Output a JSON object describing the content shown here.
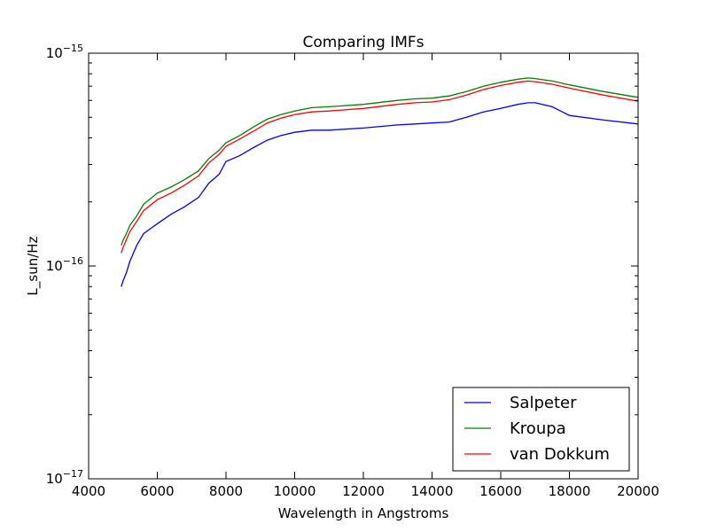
{
  "chart_data": {
    "type": "line",
    "title": "Comparing IMFs",
    "xlabel": "Wavelength in Angstroms",
    "ylabel": "L_sun/Hz",
    "xlim": [
      4000,
      20000
    ],
    "ylim": [
      1e-17,
      1e-15
    ],
    "yscale": "log",
    "x_ticks": [
      4000,
      6000,
      8000,
      10000,
      12000,
      14000,
      16000,
      18000,
      20000
    ],
    "x_tick_labels": [
      "4000",
      "6000",
      "8000",
      "10000",
      "12000",
      "14000",
      "16000",
      "18000",
      "20000"
    ],
    "y_ticks": [
      {
        "value": 1e-17,
        "base": "10",
        "exp": "−17"
      },
      {
        "value": 1e-16,
        "base": "10",
        "exp": "−16"
      },
      {
        "value": 1e-15,
        "base": "10",
        "exp": "−15"
      }
    ],
    "grid": false,
    "legend_position": "lower-right",
    "series": [
      {
        "name": "Salpeter",
        "color": "#0000ff",
        "x": [
          4950,
          5000,
          5100,
          5200,
          5400,
          5600,
          6000,
          6400,
          6800,
          7200,
          7500,
          7800,
          8000,
          8400,
          8800,
          9200,
          9600,
          10000,
          10500,
          11000,
          12000,
          13000,
          13500,
          14000,
          14500,
          15000,
          15500,
          16000,
          16500,
          16800,
          17000,
          17500,
          18000,
          19000,
          20000
        ],
        "y": [
          8e-17,
          8.5e-17,
          9.3e-17,
          1.05e-16,
          1.25e-16,
          1.42e-16,
          1.58e-16,
          1.75e-16,
          1.9e-16,
          2.1e-16,
          2.45e-16,
          2.7e-16,
          3.1e-16,
          3.3e-16,
          3.6e-16,
          3.9e-16,
          4.1e-16,
          4.25e-16,
          4.35e-16,
          4.35e-16,
          4.45e-16,
          4.6e-16,
          4.65e-16,
          4.7e-16,
          4.75e-16,
          5e-16,
          5.3e-16,
          5.5e-16,
          5.75e-16,
          5.85e-16,
          5.85e-16,
          5.6e-16,
          5.1e-16,
          4.85e-16,
          4.65e-16
        ]
      },
      {
        "name": "Kroupa",
        "color": "#008000",
        "x": [
          4950,
          5000,
          5100,
          5200,
          5400,
          5600,
          6000,
          6400,
          6800,
          7200,
          7500,
          7800,
          8000,
          8400,
          8800,
          9200,
          9600,
          10000,
          10500,
          11000,
          12000,
          13000,
          13500,
          14000,
          14500,
          15000,
          15500,
          16000,
          16500,
          16800,
          17000,
          17500,
          18000,
          19000,
          20000
        ],
        "y": [
          1.25e-16,
          1.32e-16,
          1.42e-16,
          1.55e-16,
          1.72e-16,
          1.95e-16,
          2.2e-16,
          2.35e-16,
          2.55e-16,
          2.8e-16,
          3.2e-16,
          3.5e-16,
          3.8e-16,
          4.1e-16,
          4.5e-16,
          4.9e-16,
          5.15e-16,
          5.35e-16,
          5.55e-16,
          5.6e-16,
          5.75e-16,
          6e-16,
          6.1e-16,
          6.15e-16,
          6.3e-16,
          6.6e-16,
          7e-16,
          7.3e-16,
          7.55e-16,
          7.65e-16,
          7.6e-16,
          7.4e-16,
          7.1e-16,
          6.6e-16,
          6.2e-16
        ]
      },
      {
        "name": "van Dokkum",
        "color": "#ff0000",
        "x": [
          4950,
          5000,
          5100,
          5200,
          5400,
          5600,
          6000,
          6400,
          6800,
          7200,
          7500,
          7800,
          8000,
          8400,
          8800,
          9200,
          9600,
          10000,
          10500,
          11000,
          12000,
          13000,
          13500,
          14000,
          14500,
          15000,
          15500,
          16000,
          16500,
          16800,
          17000,
          17500,
          18000,
          19000,
          20000
        ],
        "y": [
          1.15e-16,
          1.22e-16,
          1.33e-16,
          1.45e-16,
          1.62e-16,
          1.82e-16,
          2.05e-16,
          2.2e-16,
          2.4e-16,
          2.65e-16,
          3.05e-16,
          3.35e-16,
          3.65e-16,
          3.95e-16,
          4.3e-16,
          4.7e-16,
          4.95e-16,
          5.15e-16,
          5.3e-16,
          5.35e-16,
          5.5e-16,
          5.75e-16,
          5.85e-16,
          5.9e-16,
          6.05e-16,
          6.35e-16,
          6.75e-16,
          7.05e-16,
          7.3e-16,
          7.4e-16,
          7.35e-16,
          7.15e-16,
          6.85e-16,
          6.35e-16,
          5.95e-16
        ]
      }
    ]
  }
}
